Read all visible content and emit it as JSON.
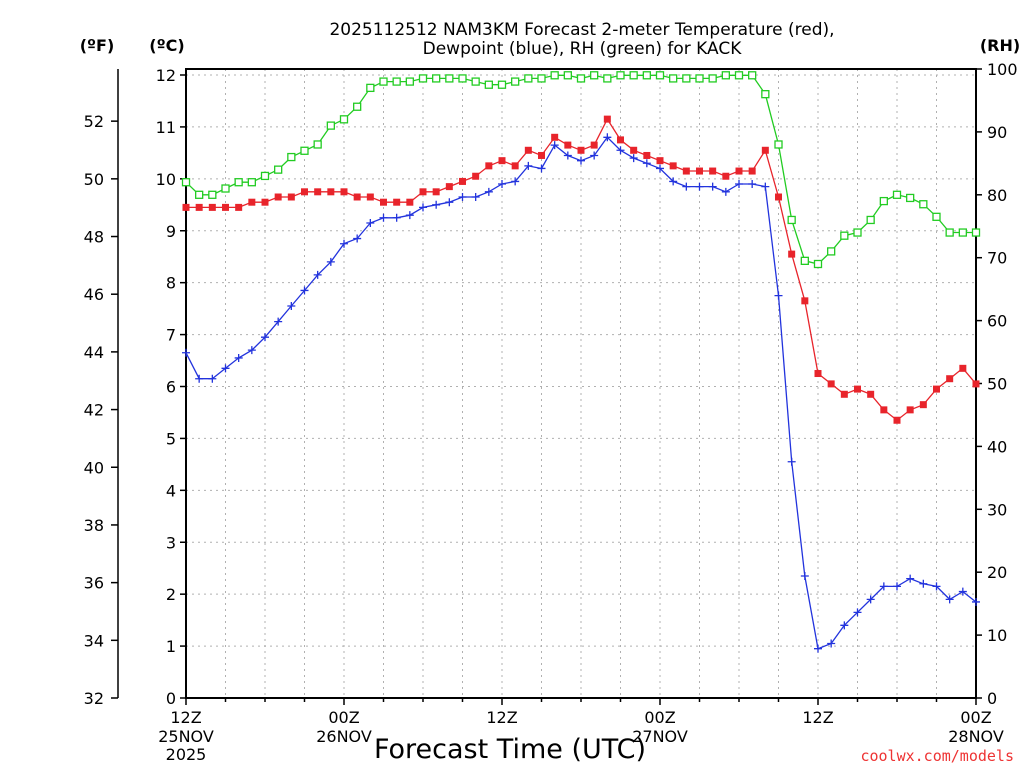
{
  "colors": {
    "temperature": "#e8242b",
    "dewpoint": "#2233dd",
    "rh": "#22cc22",
    "grid": "#b0b0b0",
    "credit": "#ee3333"
  },
  "chart_data": {
    "type": "line",
    "title_line1": "2025112512 NAM3KM Forecast 2-meter Temperature (red),",
    "title_line2": "Dewpoint (blue), RH (green) for KACK",
    "xlabel": "Forecast Time (UTC)",
    "credit": "coolwx.com/models",
    "units": {
      "fahrenheit": "(ºF)",
      "celsius": "(ºC)",
      "rh": "(RH)"
    },
    "x_range_hours": [
      0,
      60
    ],
    "x_ticks": [
      {
        "hour": 0,
        "line1": "12Z",
        "line2": "25NOV",
        "line3": "2025"
      },
      {
        "hour": 12,
        "line1": "00Z",
        "line2": "26NOV",
        "line3": ""
      },
      {
        "hour": 24,
        "line1": "12Z",
        "line2": "",
        "line3": ""
      },
      {
        "hour": 36,
        "line1": "00Z",
        "line2": "27NOV",
        "line3": ""
      },
      {
        "hour": 48,
        "line1": "12Z",
        "line2": "",
        "line3": ""
      },
      {
        "hour": 60,
        "line1": "00Z",
        "line2": "28NOV",
        "line3": ""
      }
    ],
    "y_celsius": {
      "min": 0,
      "max": 12,
      "ticks": [
        "0",
        "1",
        "2",
        "3",
        "4",
        "5",
        "6",
        "7",
        "8",
        "9",
        "10",
        "11",
        "12"
      ]
    },
    "y_fahrenheit": {
      "ticks": [
        "32",
        "34",
        "36",
        "38",
        "40",
        "42",
        "44",
        "46",
        "48",
        "50",
        "52"
      ]
    },
    "y_rh": {
      "min": 0,
      "max": 100,
      "ticks": [
        "0",
        "10",
        "20",
        "30",
        "40",
        "50",
        "60",
        "70",
        "80",
        "90",
        "100"
      ]
    },
    "series": [
      {
        "name": "Temperature",
        "axis": "celsius",
        "marker": "filled-square",
        "values": [
          9.45,
          9.45,
          9.45,
          9.45,
          9.45,
          9.55,
          9.55,
          9.65,
          9.65,
          9.75,
          9.75,
          9.75,
          9.75,
          9.65,
          9.65,
          9.55,
          9.55,
          9.55,
          9.75,
          9.75,
          9.85,
          9.95,
          10.05,
          10.25,
          10.35,
          10.25,
          10.55,
          10.45,
          10.8,
          10.65,
          10.55,
          10.65,
          11.15,
          10.75,
          10.55,
          10.45,
          10.35,
          10.25,
          10.15,
          10.15,
          10.15,
          10.05,
          10.15,
          10.15,
          10.55,
          9.65,
          8.55,
          7.65,
          6.25,
          6.05,
          5.85,
          5.95,
          5.85,
          5.55,
          5.35,
          5.55,
          5.65,
          5.95,
          6.15,
          6.35,
          6.05
        ]
      },
      {
        "name": "Dewpoint",
        "axis": "celsius",
        "marker": "plus",
        "values": [
          6.65,
          6.15,
          6.15,
          6.35,
          6.55,
          6.7,
          6.95,
          7.25,
          7.55,
          7.85,
          8.15,
          8.4,
          8.75,
          8.85,
          9.15,
          9.25,
          9.25,
          9.3,
          9.45,
          9.5,
          9.55,
          9.65,
          9.65,
          9.75,
          9.9,
          9.95,
          10.25,
          10.2,
          10.65,
          10.45,
          10.35,
          10.45,
          10.8,
          10.55,
          10.4,
          10.3,
          10.2,
          9.95,
          9.85,
          9.85,
          9.85,
          9.75,
          9.9,
          9.9,
          9.85,
          7.75,
          4.55,
          2.35,
          0.95,
          1.05,
          1.4,
          1.65,
          1.9,
          2.15,
          2.15,
          2.3,
          2.2,
          2.15,
          1.9,
          2.05,
          1.85
        ]
      },
      {
        "name": "RH",
        "axis": "rh",
        "marker": "open-square",
        "values": [
          82,
          80,
          80,
          81,
          82,
          82,
          83,
          84,
          86,
          87,
          88,
          91,
          92,
          94,
          97,
          98,
          98,
          98,
          98.5,
          98.5,
          98.5,
          98.5,
          98,
          97.5,
          97.5,
          98,
          98.5,
          98.5,
          99,
          99,
          98.5,
          99,
          98.5,
          99,
          99,
          99,
          99,
          98.5,
          98.5,
          98.5,
          98.5,
          99,
          99,
          99,
          96,
          88,
          76,
          69.5,
          69,
          71,
          73.5,
          74,
          76,
          79,
          80,
          79.5,
          78.5,
          76.5,
          74,
          74,
          74
        ]
      }
    ]
  }
}
